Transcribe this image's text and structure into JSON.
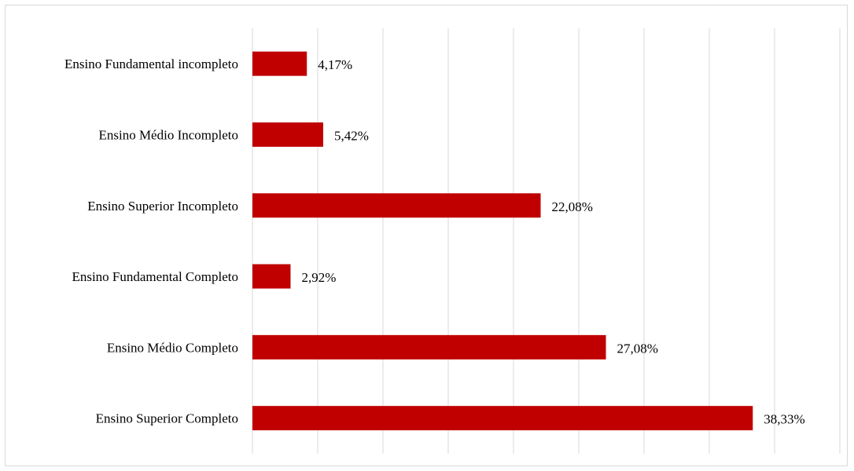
{
  "chart_data": {
    "type": "bar",
    "orientation": "horizontal",
    "categories": [
      "Ensino Fundamental incompleto",
      "Ensino Médio Incompleto",
      "Ensino Superior Incompleto",
      "Ensino Fundamental Completo",
      "Ensino Médio Completo",
      "Ensino Superior Completo"
    ],
    "values": [
      4.17,
      5.42,
      22.08,
      2.92,
      27.08,
      38.33
    ],
    "value_labels": [
      "4,17%",
      "5,42%",
      "22,08%",
      "2,92%",
      "27,08%",
      "38,33%"
    ],
    "xlim": [
      0,
      45
    ],
    "x_grid_step": 5,
    "grid": true,
    "legend": false,
    "bar_color": "#C00000",
    "gridline_color": "#d9d9d9"
  }
}
